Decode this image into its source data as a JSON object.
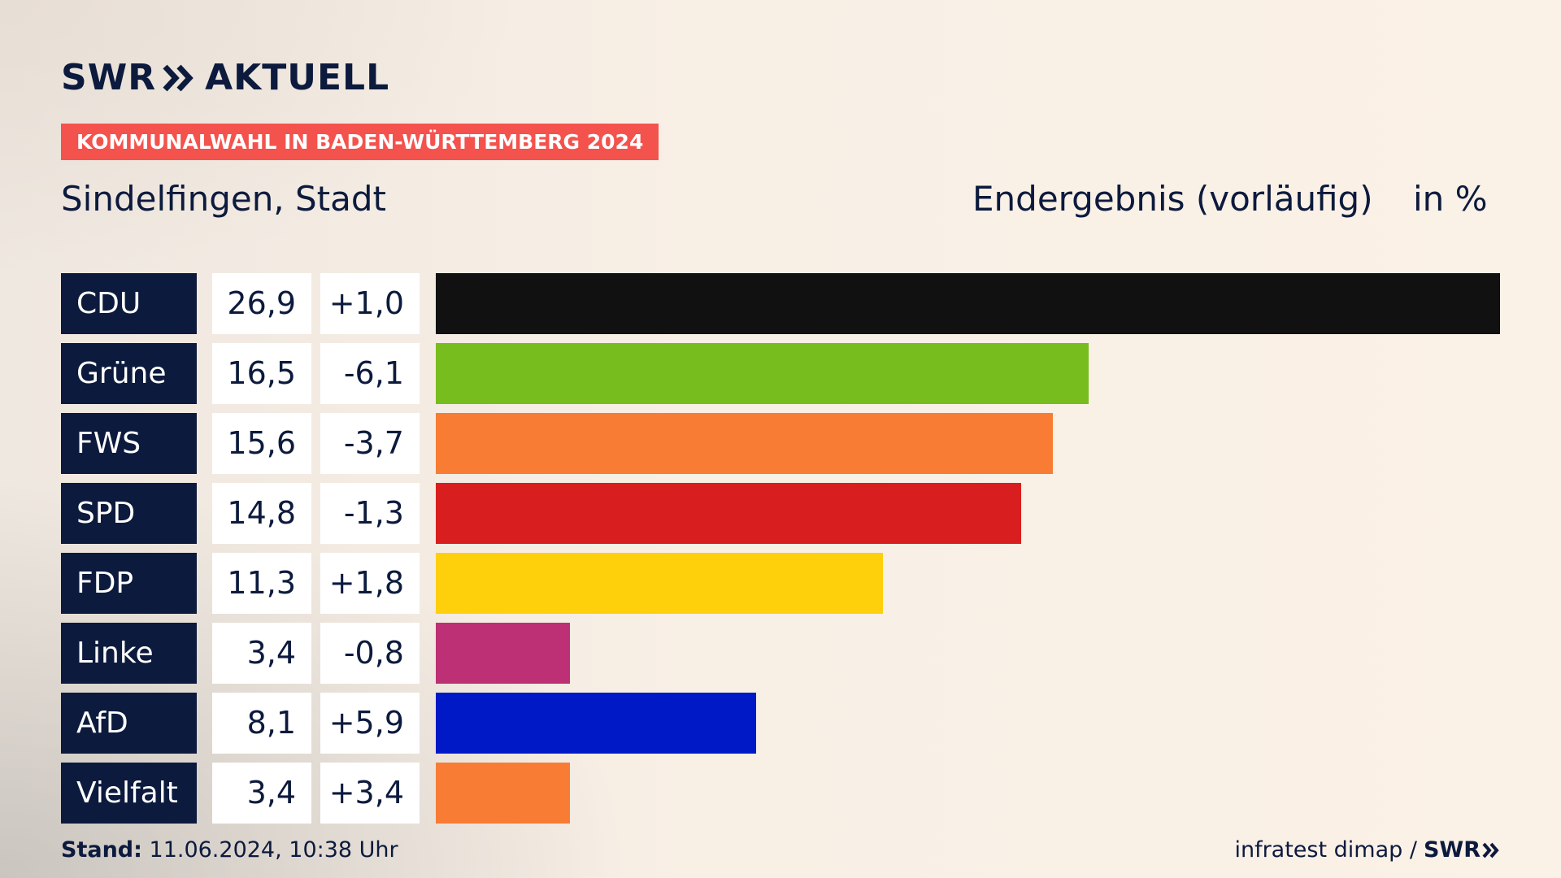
{
  "header": {
    "logo_text_left": "SWR",
    "logo_text_right": "AKTUELL",
    "tag": "KOMMUNALWAHL IN BADEN-WÜRTTEMBERG 2024",
    "place": "Sindelfingen, Stadt",
    "result_label": "Endergebnis (vorläufig)",
    "unit": "in %"
  },
  "footer": {
    "stand_label": "Stand:",
    "stand_value": "11.06.2024, 10:38 Uhr",
    "source": "infratest dimap /",
    "source_logo": "SWR"
  },
  "colors": {
    "navy": "#0c1a3d",
    "tag_red": "#f4524d"
  },
  "chart_data": {
    "type": "bar",
    "orientation": "horizontal",
    "title": "Sindelfingen, Stadt",
    "subtitle": "Endergebnis (vorläufig)",
    "unit": "in %",
    "categories": [
      "CDU",
      "Grüne",
      "FWS",
      "SPD",
      "FDP",
      "Linke",
      "AfD",
      "Vielfalt"
    ],
    "values": [
      26.9,
      16.5,
      15.6,
      14.8,
      11.3,
      3.4,
      8.1,
      3.4
    ],
    "value_labels": [
      "26,9",
      "16,5",
      "15,6",
      "14,8",
      "11,3",
      "3,4",
      "8,1",
      "3,4"
    ],
    "diff_labels": [
      "+1,0",
      "-6,1",
      "-3,7",
      "-1,3",
      "+1,8",
      "-0,8",
      "+5,9",
      "+3,4"
    ],
    "bar_colors": [
      "#111111",
      "#77bd1e",
      "#f87c33",
      "#d81e1e",
      "#fecf0b",
      "#bd3075",
      "#0019c7",
      "#f87c33"
    ],
    "xlim": [
      0,
      26.9
    ],
    "grid": false,
    "legend": "none"
  }
}
